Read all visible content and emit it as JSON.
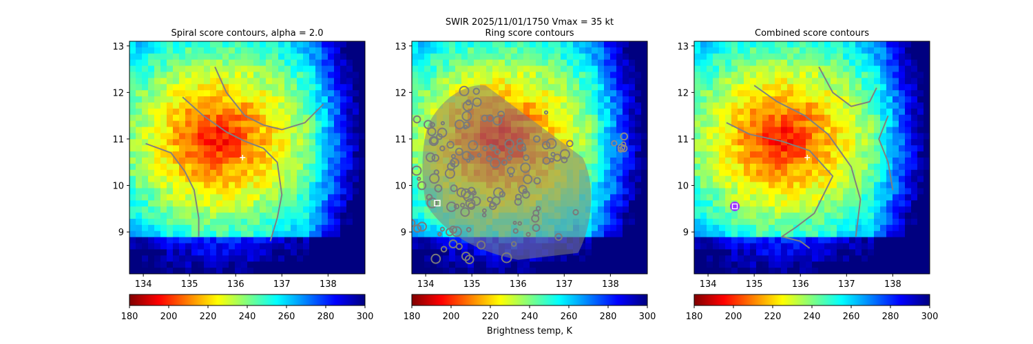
{
  "suptitle": "SWIR  2025/11/01/1750    Vmax = 35 kt",
  "colorbar": {
    "label": "Brightness temp, K",
    "range": [
      180,
      300
    ],
    "ticks": [
      "180",
      "200",
      "220",
      "240",
      "260",
      "280",
      "300"
    ],
    "colormap": "jet_r",
    "colors": [
      "#800000",
      "#ff0000",
      "#ff8000",
      "#ffff00",
      "#80ff80",
      "#00ffff",
      "#0080ff",
      "#0000ff",
      "#000080"
    ]
  },
  "axes": {
    "x_range": [
      133.7,
      138.8
    ],
    "y_range": [
      8.1,
      13.1
    ],
    "x_ticks": [
      "134",
      "135",
      "136",
      "137",
      "138"
    ],
    "y_ticks": [
      "9",
      "10",
      "11",
      "12",
      "13"
    ]
  },
  "chart_data": [
    {
      "type": "heatmap",
      "title": "Spiral score contours, alpha =  2.0",
      "center_marker": {
        "x": 136.15,
        "y": 10.6,
        "symbol": "plus",
        "color": "#ffffff"
      },
      "contours": [
        {
          "color": "#808080",
          "points": [
            [
              135.55,
              12.55
            ],
            [
              135.8,
              12.0
            ],
            [
              136.2,
              11.5
            ],
            [
              136.6,
              11.3
            ],
            [
              137.0,
              11.2
            ],
            [
              137.5,
              11.35
            ],
            [
              137.9,
              11.75
            ]
          ]
        },
        {
          "color": "#808080",
          "points": [
            [
              134.85,
              11.9
            ],
            [
              135.3,
              11.5
            ],
            [
              135.8,
              11.15
            ],
            [
              136.2,
              10.95
            ],
            [
              136.6,
              10.8
            ],
            [
              136.9,
              10.5
            ],
            [
              137.0,
              9.8
            ],
            [
              136.9,
              9.3
            ],
            [
              136.75,
              8.8
            ]
          ]
        },
        {
          "color": "#808080",
          "points": [
            [
              134.05,
              10.9
            ],
            [
              134.6,
              10.7
            ],
            [
              134.9,
              10.3
            ],
            [
              135.1,
              9.9
            ],
            [
              135.2,
              9.3
            ],
            [
              135.2,
              8.9
            ]
          ]
        }
      ]
    },
    {
      "type": "heatmap",
      "title": "Ring score contours",
      "center_marker": {
        "x": 134.25,
        "y": 9.62,
        "symbol": "square",
        "color": "#ffffff"
      },
      "contours": [
        {
          "color": "#808080",
          "region": "dense ring-score contours over the storm core"
        }
      ]
    },
    {
      "type": "heatmap",
      "title": "Combined score contours",
      "center_marker": {
        "x": 136.15,
        "y": 10.6,
        "symbol": "plus",
        "color": "#ffffff"
      },
      "secondary_marker": {
        "x": 134.58,
        "y": 9.55,
        "symbol": "square-in-circle",
        "color": "#9b30ff"
      },
      "contours": [
        {
          "color": "#808080",
          "points": [
            [
              136.4,
              12.55
            ],
            [
              136.7,
              12.0
            ],
            [
              137.1,
              11.7
            ],
            [
              137.5,
              11.8
            ],
            [
              137.65,
              12.1
            ]
          ]
        },
        {
          "color": "#808080",
          "points": [
            [
              135.0,
              12.15
            ],
            [
              135.5,
              11.8
            ],
            [
              136.1,
              11.5
            ],
            [
              136.6,
              11.1
            ],
            [
              137.1,
              10.4
            ],
            [
              137.3,
              9.7
            ],
            [
              137.2,
              8.9
            ]
          ]
        },
        {
          "color": "#808080",
          "points": [
            [
              134.4,
              11.35
            ],
            [
              134.9,
              11.1
            ],
            [
              135.6,
              10.95
            ],
            [
              136.2,
              10.75
            ],
            [
              136.7,
              10.2
            ],
            [
              136.3,
              9.4
            ],
            [
              135.9,
              9.1
            ],
            [
              135.6,
              8.9
            ],
            [
              136.0,
              8.8
            ],
            [
              136.2,
              8.65
            ]
          ]
        },
        {
          "color": "#808080",
          "points": [
            [
              137.9,
              11.5
            ],
            [
              137.7,
              11.0
            ],
            [
              137.9,
              10.5
            ],
            [
              138.0,
              9.9
            ]
          ]
        }
      ]
    }
  ]
}
